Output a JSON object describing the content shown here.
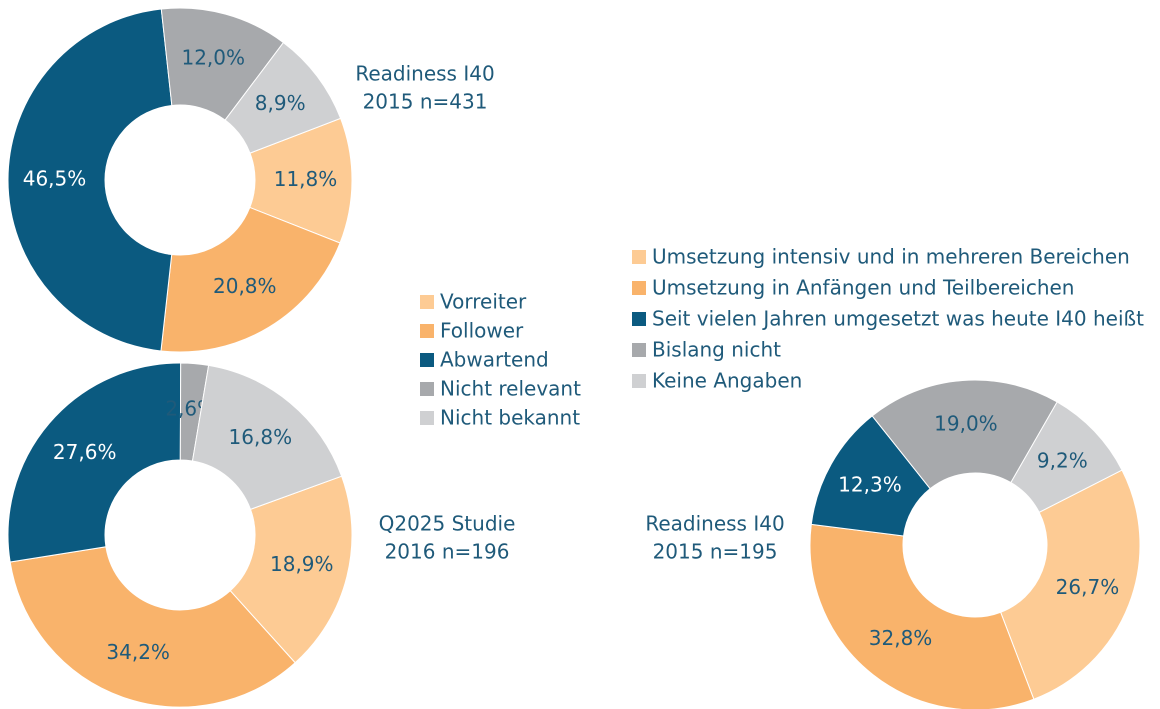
{
  "chart_data": [
    {
      "type": "pie",
      "title": "Readiness I40",
      "subtitle": "2015 n=431",
      "categories": [
        "Vorreiter",
        "Follower",
        "Abwartend",
        "Nicht relevant",
        "Nicht bekannt"
      ],
      "colors": [
        "#fdcb94",
        "#f9b36b",
        "#0b5a80",
        "#a7a9ac",
        "#cfd0d2"
      ],
      "values": [
        11.8,
        20.8,
        46.5,
        12.0,
        8.9
      ],
      "value_labels": [
        "11,8%",
        "20,8%",
        "46,5%",
        "12,0%",
        "8,9%"
      ],
      "legend": true
    },
    {
      "type": "pie",
      "title": "Q2025 Studie",
      "subtitle": "2016 n=196",
      "categories": [
        "Vorreiter",
        "Follower",
        "Abwartend",
        "Nicht relevant",
        "Nicht bekannt"
      ],
      "colors": [
        "#fdcb94",
        "#f9b36b",
        "#0b5a80",
        "#a7a9ac",
        "#cfd0d2"
      ],
      "values": [
        18.9,
        34.2,
        27.6,
        2.6,
        16.8
      ],
      "value_labels": [
        "18,9%",
        "34,2%",
        "27,6%",
        "2,6%",
        "16,8%"
      ],
      "legend": false
    },
    {
      "type": "pie",
      "title": "Readiness I40",
      "subtitle": "2015 n=195",
      "categories": [
        "Umsetzung intensiv und in mehreren Bereichen",
        "Umsetzung in Anfängen und Teilbereichen",
        "Seit vielen Jahren umgesetzt was heute I40 heißt",
        "Bislang nicht",
        "Keine Angaben"
      ],
      "colors": [
        "#fdcb94",
        "#f9b36b",
        "#0b5a80",
        "#a7a9ac",
        "#cfd0d2"
      ],
      "values": [
        26.7,
        32.8,
        12.3,
        19.0,
        9.2
      ],
      "value_labels": [
        "26,7%",
        "32,8%",
        "12,3%",
        "19,0%",
        "9,2%"
      ],
      "legend": true
    }
  ]
}
